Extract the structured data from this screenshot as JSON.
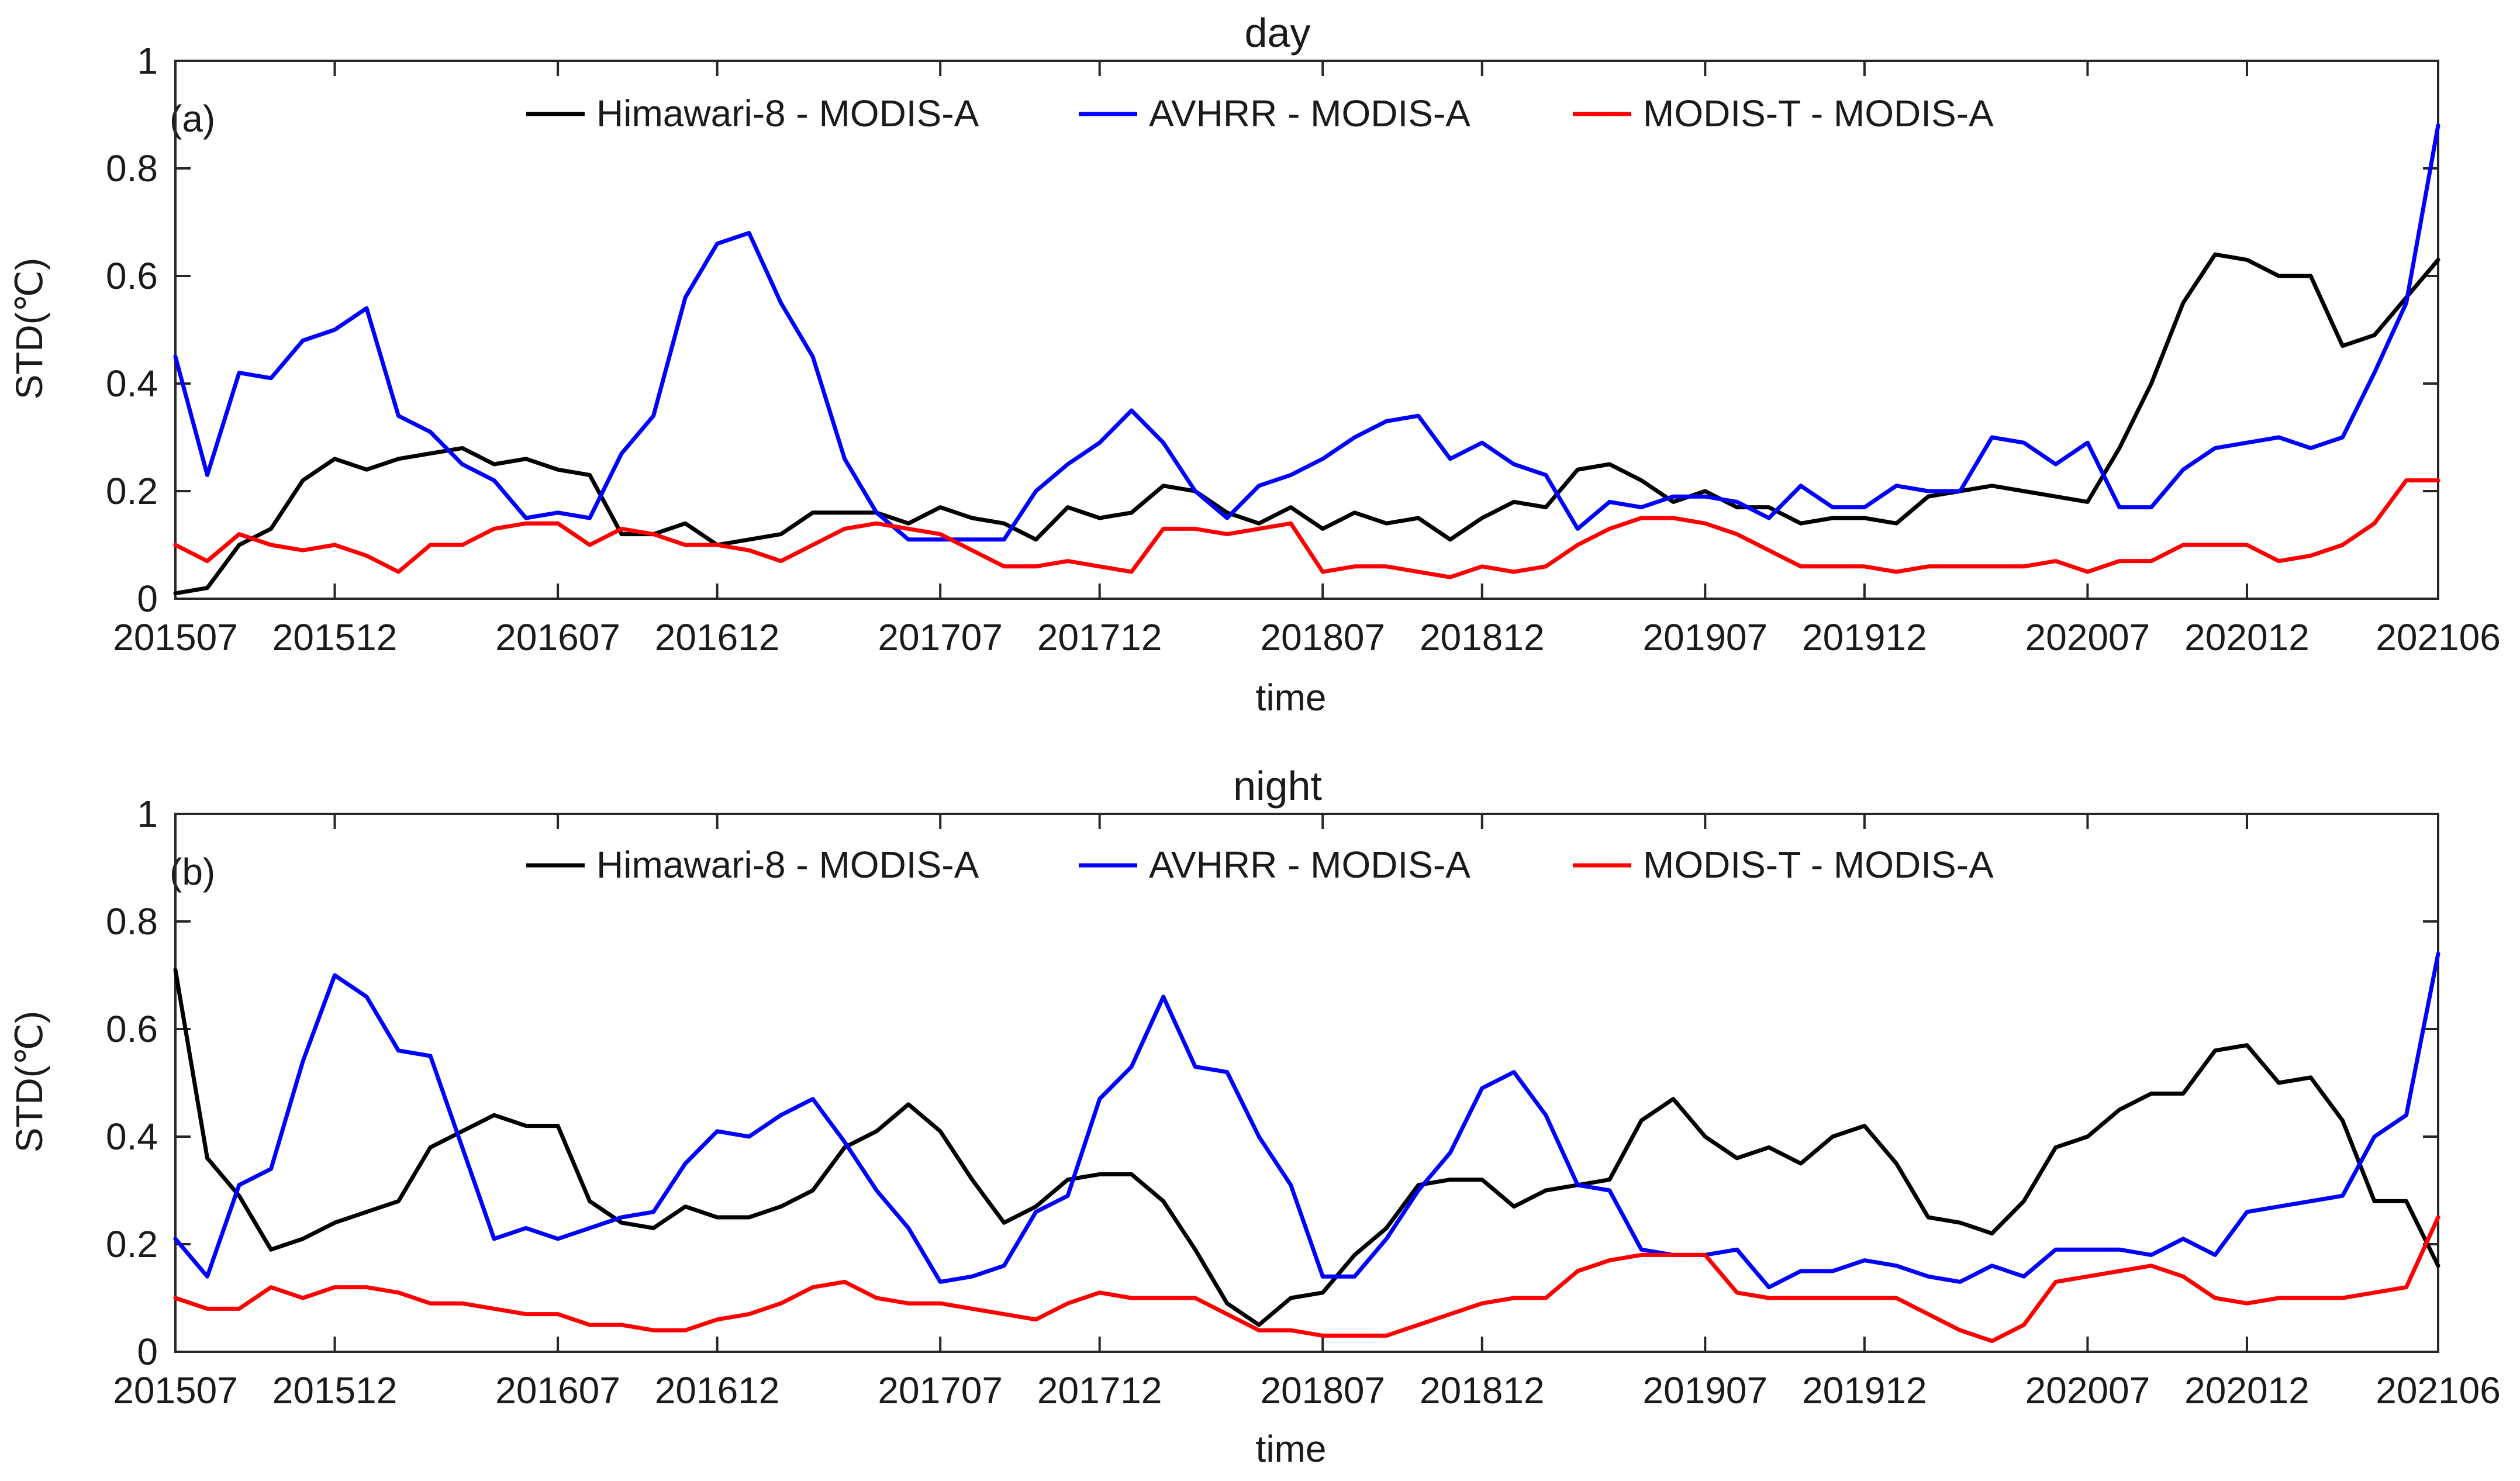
{
  "figure": {
    "background": "#ffffff",
    "series_colors": [
      "#000000",
      "#0000ff",
      "#ff0000"
    ]
  },
  "chart_data": [
    {
      "type": "line",
      "title": "day",
      "panel_label": "(a)",
      "xlabel": "time",
      "ylabel": "STD(℃)",
      "ylim": [
        0,
        1
      ],
      "yticks": [
        "0",
        "0.2",
        "0.4",
        "0.6",
        "0.8",
        "1"
      ],
      "xtick_labels": [
        "201507",
        "201512",
        "201607",
        "201612",
        "201707",
        "201712",
        "201807",
        "201812",
        "201907",
        "201912",
        "202007",
        "202012",
        "202106"
      ],
      "x_start": "2015-07",
      "x_end": "2021-06",
      "legend_position": "top",
      "grid": false,
      "series": [
        {
          "name": "Himawari-8 - MODIS-A",
          "color": "#000000",
          "values": [
            0.01,
            0.02,
            0.1,
            0.13,
            0.22,
            0.26,
            0.24,
            0.26,
            0.27,
            0.28,
            0.25,
            0.26,
            0.24,
            0.23,
            0.12,
            0.12,
            0.14,
            0.1,
            0.11,
            0.12,
            0.16,
            0.16,
            0.16,
            0.14,
            0.17,
            0.15,
            0.14,
            0.11,
            0.17,
            0.15,
            0.16,
            0.21,
            0.2,
            0.16,
            0.14,
            0.17,
            0.13,
            0.16,
            0.14,
            0.15,
            0.11,
            0.15,
            0.18,
            0.17,
            0.24,
            0.25,
            0.22,
            0.18,
            0.2,
            0.17,
            0.17,
            0.14,
            0.15,
            0.15,
            0.14,
            0.19,
            0.2,
            0.21,
            0.2,
            0.19,
            0.18,
            0.28,
            0.4,
            0.55,
            0.64,
            0.63,
            0.6,
            0.6,
            0.47,
            0.49,
            0.56,
            0.63
          ]
        },
        {
          "name": "AVHRR - MODIS-A",
          "color": "#0000ff",
          "values": [
            0.45,
            0.23,
            0.42,
            0.41,
            0.48,
            0.5,
            0.54,
            0.34,
            0.31,
            0.25,
            0.22,
            0.15,
            0.16,
            0.15,
            0.27,
            0.34,
            0.56,
            0.66,
            0.68,
            0.55,
            0.45,
            0.26,
            0.16,
            0.11,
            0.11,
            0.11,
            0.11,
            0.2,
            0.25,
            0.29,
            0.35,
            0.29,
            0.2,
            0.15,
            0.21,
            0.23,
            0.26,
            0.3,
            0.33,
            0.34,
            0.26,
            0.29,
            0.25,
            0.23,
            0.13,
            0.18,
            0.17,
            0.19,
            0.19,
            0.18,
            0.15,
            0.21,
            0.17,
            0.17,
            0.21,
            0.2,
            0.2,
            0.3,
            0.29,
            0.25,
            0.29,
            0.17,
            0.17,
            0.24,
            0.28,
            0.29,
            0.3,
            0.28,
            0.3,
            0.42,
            0.55,
            0.88
          ]
        },
        {
          "name": "MODIS-T - MODIS-A",
          "color": "#ff0000",
          "values": [
            0.1,
            0.07,
            0.12,
            0.1,
            0.09,
            0.1,
            0.08,
            0.05,
            0.1,
            0.1,
            0.13,
            0.14,
            0.14,
            0.1,
            0.13,
            0.12,
            0.1,
            0.1,
            0.09,
            0.07,
            0.1,
            0.13,
            0.14,
            0.13,
            0.12,
            0.09,
            0.06,
            0.06,
            0.07,
            0.06,
            0.05,
            0.13,
            0.13,
            0.12,
            0.13,
            0.14,
            0.05,
            0.06,
            0.06,
            0.05,
            0.04,
            0.06,
            0.05,
            0.06,
            0.1,
            0.13,
            0.15,
            0.15,
            0.14,
            0.12,
            0.09,
            0.06,
            0.06,
            0.06,
            0.05,
            0.06,
            0.06,
            0.06,
            0.06,
            0.07,
            0.05,
            0.07,
            0.07,
            0.1,
            0.1,
            0.1,
            0.07,
            0.08,
            0.1,
            0.14,
            0.22,
            0.22
          ]
        }
      ]
    },
    {
      "type": "line",
      "title": "night",
      "panel_label": "(b)",
      "xlabel": "time",
      "ylabel": "STD(℃)",
      "ylim": [
        0,
        1
      ],
      "yticks": [
        "0",
        "0.2",
        "0.4",
        "0.6",
        "0.8",
        "1"
      ],
      "xtick_labels": [
        "201507",
        "201512",
        "201607",
        "201612",
        "201707",
        "201712",
        "201807",
        "201812",
        "201907",
        "201912",
        "202007",
        "202012",
        "202106"
      ],
      "x_start": "2015-07",
      "x_end": "2021-06",
      "legend_position": "top",
      "grid": false,
      "series": [
        {
          "name": "Himawari-8 - MODIS-A",
          "color": "#000000",
          "values": [
            0.71,
            0.36,
            0.29,
            0.19,
            0.21,
            0.24,
            0.26,
            0.28,
            0.38,
            0.41,
            0.44,
            0.42,
            0.42,
            0.28,
            0.24,
            0.23,
            0.27,
            0.25,
            0.25,
            0.27,
            0.3,
            0.38,
            0.41,
            0.46,
            0.41,
            0.32,
            0.24,
            0.27,
            0.32,
            0.33,
            0.33,
            0.28,
            0.19,
            0.09,
            0.05,
            0.1,
            0.11,
            0.18,
            0.23,
            0.31,
            0.32,
            0.32,
            0.27,
            0.3,
            0.31,
            0.32,
            0.43,
            0.47,
            0.4,
            0.36,
            0.38,
            0.35,
            0.4,
            0.42,
            0.35,
            0.25,
            0.24,
            0.22,
            0.28,
            0.38,
            0.4,
            0.45,
            0.48,
            0.48,
            0.56,
            0.57,
            0.5,
            0.51,
            0.43,
            0.28,
            0.28,
            0.16
          ]
        },
        {
          "name": "AVHRR - MODIS-A",
          "color": "#0000ff",
          "values": [
            0.21,
            0.14,
            0.31,
            0.34,
            0.54,
            0.7,
            0.66,
            0.56,
            0.55,
            0.38,
            0.21,
            0.23,
            0.21,
            0.23,
            0.25,
            0.26,
            0.35,
            0.41,
            0.4,
            0.44,
            0.47,
            0.39,
            0.3,
            0.23,
            0.13,
            0.14,
            0.16,
            0.26,
            0.29,
            0.47,
            0.53,
            0.66,
            0.53,
            0.52,
            0.4,
            0.31,
            0.14,
            0.14,
            0.21,
            0.3,
            0.37,
            0.49,
            0.52,
            0.44,
            0.31,
            0.3,
            0.19,
            0.18,
            0.18,
            0.19,
            0.12,
            0.15,
            0.15,
            0.17,
            0.16,
            0.14,
            0.13,
            0.16,
            0.14,
            0.19,
            0.19,
            0.19,
            0.18,
            0.21,
            0.18,
            0.26,
            0.27,
            0.28,
            0.29,
            0.4,
            0.44,
            0.74
          ]
        },
        {
          "name": "MODIS-T - MODIS-A",
          "color": "#ff0000",
          "values": [
            0.1,
            0.08,
            0.08,
            0.12,
            0.1,
            0.12,
            0.12,
            0.11,
            0.09,
            0.09,
            0.08,
            0.07,
            0.07,
            0.05,
            0.05,
            0.04,
            0.04,
            0.06,
            0.07,
            0.09,
            0.12,
            0.13,
            0.1,
            0.09,
            0.09,
            0.08,
            0.07,
            0.06,
            0.09,
            0.11,
            0.1,
            0.1,
            0.1,
            0.07,
            0.04,
            0.04,
            0.03,
            0.03,
            0.03,
            0.05,
            0.07,
            0.09,
            0.1,
            0.1,
            0.15,
            0.17,
            0.18,
            0.18,
            0.18,
            0.11,
            0.1,
            0.1,
            0.1,
            0.1,
            0.1,
            0.07,
            0.04,
            0.02,
            0.05,
            0.13,
            0.14,
            0.15,
            0.16,
            0.14,
            0.1,
            0.09,
            0.1,
            0.1,
            0.1,
            0.11,
            0.12,
            0.25
          ]
        }
      ]
    }
  ]
}
